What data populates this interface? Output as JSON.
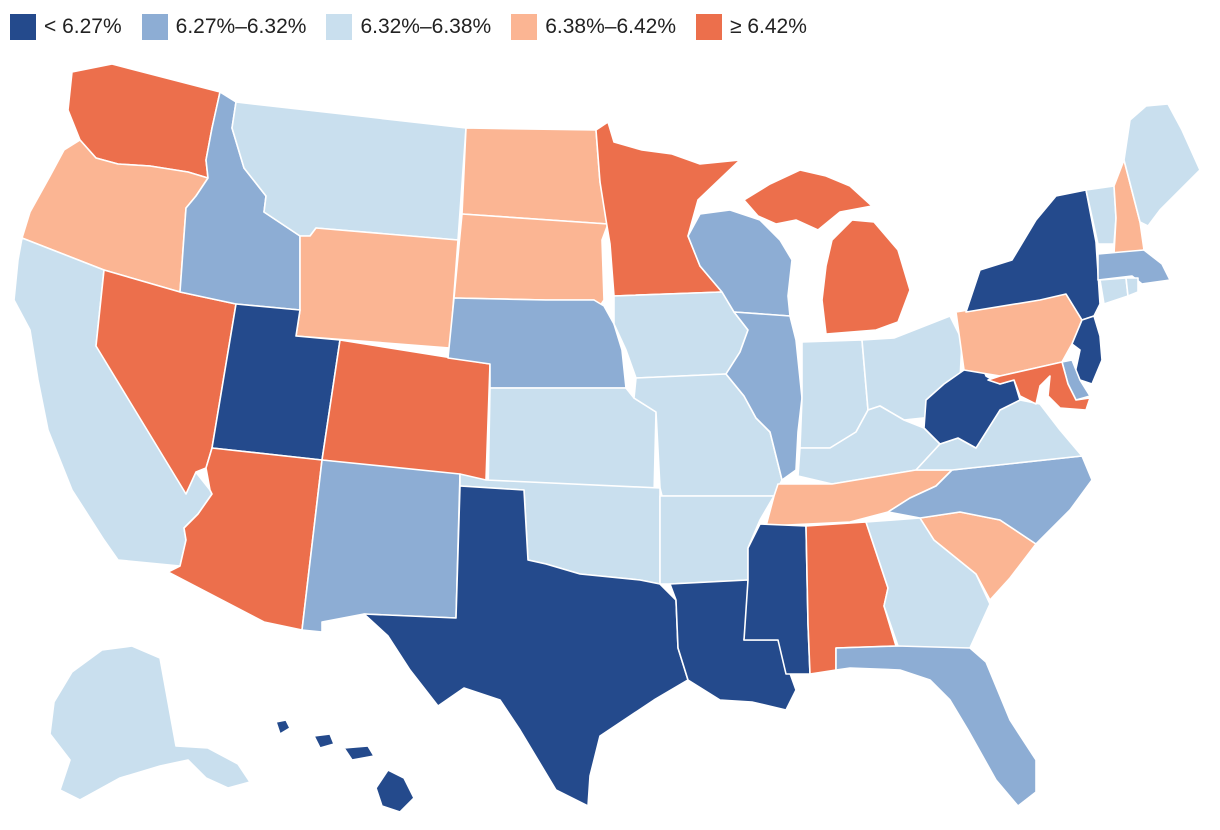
{
  "legend": {
    "items": [
      {
        "label": "< 6.27%",
        "color": "#244a8c"
      },
      {
        "label": "6.27%–6.32%",
        "color": "#8dadd4"
      },
      {
        "label": "6.32%–6.38%",
        "color": "#c9dfee"
      },
      {
        "label": "6.38%–6.42%",
        "color": "#fbb593"
      },
      {
        "label": "≥ 6.42%",
        "color": "#ec6f4c"
      }
    ]
  },
  "states": [
    {
      "name": "Washington",
      "bucket": 4
    },
    {
      "name": "Oregon",
      "bucket": 3
    },
    {
      "name": "California",
      "bucket": 2
    },
    {
      "name": "Nevada",
      "bucket": 4
    },
    {
      "name": "Idaho",
      "bucket": 1
    },
    {
      "name": "Montana",
      "bucket": 2
    },
    {
      "name": "Wyoming",
      "bucket": 3
    },
    {
      "name": "Utah",
      "bucket": 0
    },
    {
      "name": "Arizona",
      "bucket": 4
    },
    {
      "name": "Colorado",
      "bucket": 4
    },
    {
      "name": "New Mexico",
      "bucket": 1
    },
    {
      "name": "North Dakota",
      "bucket": 3
    },
    {
      "name": "South Dakota",
      "bucket": 3
    },
    {
      "name": "Nebraska",
      "bucket": 1
    },
    {
      "name": "Kansas",
      "bucket": 2
    },
    {
      "name": "Oklahoma",
      "bucket": 2
    },
    {
      "name": "Texas",
      "bucket": 0
    },
    {
      "name": "Minnesota",
      "bucket": 4
    },
    {
      "name": "Iowa",
      "bucket": 2
    },
    {
      "name": "Missouri",
      "bucket": 2
    },
    {
      "name": "Arkansas",
      "bucket": 2
    },
    {
      "name": "Louisiana",
      "bucket": 0
    },
    {
      "name": "Wisconsin",
      "bucket": 1
    },
    {
      "name": "Illinois",
      "bucket": 1
    },
    {
      "name": "Michigan",
      "bucket": 4
    },
    {
      "name": "Indiana",
      "bucket": 2
    },
    {
      "name": "Ohio",
      "bucket": 2
    },
    {
      "name": "Kentucky",
      "bucket": 2
    },
    {
      "name": "Tennessee",
      "bucket": 3
    },
    {
      "name": "Mississippi",
      "bucket": 0
    },
    {
      "name": "Alabama",
      "bucket": 4
    },
    {
      "name": "Georgia",
      "bucket": 2
    },
    {
      "name": "Florida",
      "bucket": 1
    },
    {
      "name": "South Carolina",
      "bucket": 3
    },
    {
      "name": "North Carolina",
      "bucket": 1
    },
    {
      "name": "Virginia",
      "bucket": 2
    },
    {
      "name": "West Virginia",
      "bucket": 0
    },
    {
      "name": "Pennsylvania",
      "bucket": 3
    },
    {
      "name": "New York",
      "bucket": 0
    },
    {
      "name": "New Jersey",
      "bucket": 0
    },
    {
      "name": "Delaware",
      "bucket": 1
    },
    {
      "name": "Maryland",
      "bucket": 4
    },
    {
      "name": "Vermont",
      "bucket": 2
    },
    {
      "name": "New Hampshire",
      "bucket": 3
    },
    {
      "name": "Maine",
      "bucket": 2
    },
    {
      "name": "Massachusetts",
      "bucket": 1
    },
    {
      "name": "Connecticut",
      "bucket": 2
    },
    {
      "name": "Rhode Island",
      "bucket": 2
    },
    {
      "name": "Alaska",
      "bucket": 2
    },
    {
      "name": "Hawaii",
      "bucket": 0
    }
  ]
}
